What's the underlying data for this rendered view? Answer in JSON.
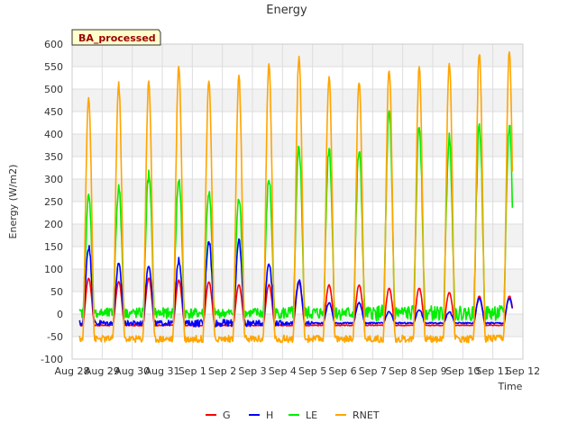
{
  "chart_data": {
    "type": "line",
    "title": "Energy",
    "xlabel": "Time",
    "ylabel": "Energy (W/m2)",
    "ylim": [
      -100,
      600
    ],
    "y_ticks": [
      -100,
      -50,
      0,
      50,
      100,
      150,
      200,
      250,
      300,
      350,
      400,
      450,
      500,
      550,
      600
    ],
    "x_ticks": [
      "Aug 28",
      "Aug 29",
      "Aug 30",
      "Aug 31",
      "Sep 1",
      "Sep 2",
      "Sep 3",
      "Sep 4",
      "Sep 5",
      "Sep 6",
      "Sep 7",
      "Sep 8",
      "Sep 9",
      "Sep 10",
      "Sep 11",
      "Sep 12"
    ],
    "badge": "BA_processed",
    "grid": true,
    "legend_position": "bottom",
    "day_start": 0.25,
    "day_end": 14.65,
    "peak_day_offset": 0.55,
    "series": [
      {
        "name": "G",
        "color": "#ff0000",
        "night": -25,
        "peaks": [
          80,
          72,
          80,
          75,
          72,
          65,
          65,
          70,
          65,
          65,
          58,
          58,
          48,
          40
        ]
      },
      {
        "name": "H",
        "color": "#0000ff",
        "night": -20,
        "peaks": [
          150,
          110,
          110,
          120,
          165,
          160,
          115,
          75,
          25,
          25,
          5,
          10,
          5,
          35
        ]
      },
      {
        "name": "LE",
        "color": "#00ee00",
        "night": 2,
        "peaks": [
          260,
          280,
          310,
          300,
          270,
          255,
          300,
          370,
          370,
          360,
          440,
          420,
          390,
          420
        ]
      },
      {
        "name": "RNET",
        "color": "#ffa500",
        "night": -55,
        "peaks": [
          480,
          510,
          515,
          550,
          520,
          525,
          555,
          570,
          530,
          520,
          545,
          550,
          560,
          580
        ]
      }
    ]
  }
}
